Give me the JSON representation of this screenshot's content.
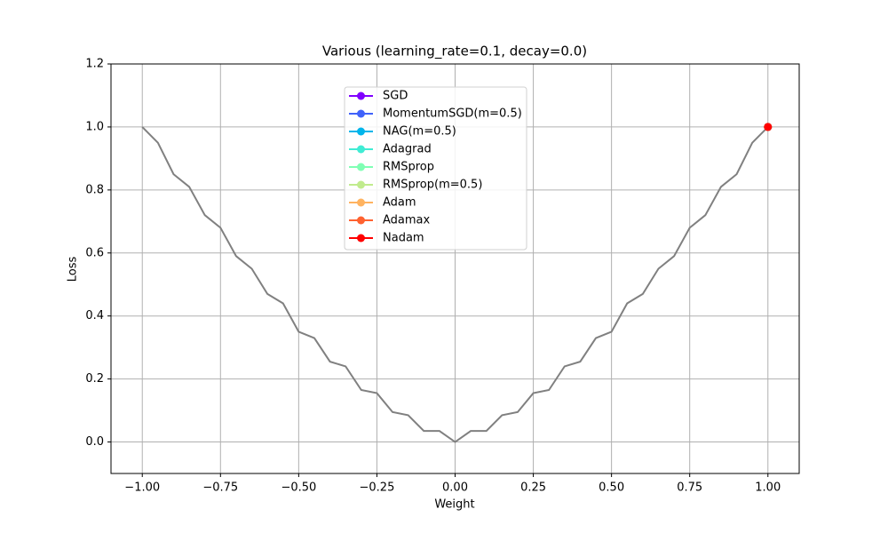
{
  "chart_data": {
    "type": "line",
    "title": "Various (learning_rate=0.1, decay=0.0)",
    "x_label": "Weight",
    "y_label": "Loss",
    "xlim": [
      -1.1,
      1.1
    ],
    "ylim": [
      -0.1,
      1.2
    ],
    "xticks": [
      {
        "value": -1,
        "label": "−1.00"
      },
      {
        "value": -0.75,
        "label": "−0.75"
      },
      {
        "value": -0.5,
        "label": "−0.50"
      },
      {
        "value": -0.25,
        "label": "−0.25"
      },
      {
        "value": 0,
        "label": "0.00"
      },
      {
        "value": 0.25,
        "label": "0.25"
      },
      {
        "value": 0.5,
        "label": "0.50"
      },
      {
        "value": 0.75,
        "label": "0.75"
      },
      {
        "value": 1,
        "label": "1.00"
      }
    ],
    "yticks": [
      {
        "value": 0,
        "label": "0.0"
      },
      {
        "value": 0.2,
        "label": "0.2"
      },
      {
        "value": 0.4,
        "label": "0.4"
      },
      {
        "value": 0.6,
        "label": "0.6"
      },
      {
        "value": 0.8,
        "label": "0.8"
      },
      {
        "value": 1,
        "label": "1.0"
      },
      {
        "value": 1.2,
        "label": "1.2"
      }
    ],
    "grid": true,
    "legend_position": "top",
    "curve": {
      "color": "#808080",
      "x": [
        -1,
        -0.95,
        -0.9,
        -0.85,
        -0.8,
        -0.75,
        -0.7,
        -0.65,
        -0.6,
        -0.55,
        -0.5,
        -0.45,
        -0.4,
        -0.35,
        -0.3,
        -0.25,
        -0.2,
        -0.15,
        -0.1,
        -0.05,
        0,
        0.05,
        0.1,
        0.15,
        0.2,
        0.25,
        0.3,
        0.35,
        0.4,
        0.45,
        0.5,
        0.55,
        0.6,
        0.65,
        0.7,
        0.75,
        0.8,
        0.85,
        0.9,
        0.95,
        1
      ],
      "values": [
        1,
        0.95,
        0.85,
        0.81,
        0.72,
        0.68,
        0.59,
        0.55,
        0.47,
        0.44,
        0.35,
        0.33,
        0.255,
        0.24,
        0.165,
        0.155,
        0.095,
        0.085,
        0.035,
        0.035,
        0,
        0.035,
        0.035,
        0.085,
        0.095,
        0.155,
        0.165,
        0.24,
        0.255,
        0.33,
        0.35,
        0.44,
        0.47,
        0.55,
        0.59,
        0.68,
        0.72,
        0.81,
        0.85,
        0.95,
        1
      ]
    },
    "series": [
      {
        "name": "SGD",
        "color": "#8000ff",
        "x": [
          1
        ],
        "values": [
          1
        ]
      },
      {
        "name": "MomentumSGD(m=0.5)",
        "color": "#4062fa",
        "x": [
          1
        ],
        "values": [
          1
        ]
      },
      {
        "name": "NAG(m=0.5)",
        "color": "#00b5eb",
        "x": [
          1
        ],
        "values": [
          1
        ]
      },
      {
        "name": "Adagrad",
        "color": "#40ecd4",
        "x": [
          1
        ],
        "values": [
          1
        ]
      },
      {
        "name": "RMSprop",
        "color": "#80ffb4",
        "x": [
          1
        ],
        "values": [
          1
        ]
      },
      {
        "name": "RMSprop(m=0.5)",
        "color": "#c0eb8d",
        "x": [
          1
        ],
        "values": [
          1
        ]
      },
      {
        "name": "Adam",
        "color": "#ffb360",
        "x": [
          1
        ],
        "values": [
          1
        ]
      },
      {
        "name": "Adamax",
        "color": "#ff6230",
        "x": [
          1
        ],
        "values": [
          1
        ]
      },
      {
        "name": "Nadam",
        "color": "#ff0000",
        "x": [
          1
        ],
        "values": [
          1
        ]
      }
    ]
  }
}
